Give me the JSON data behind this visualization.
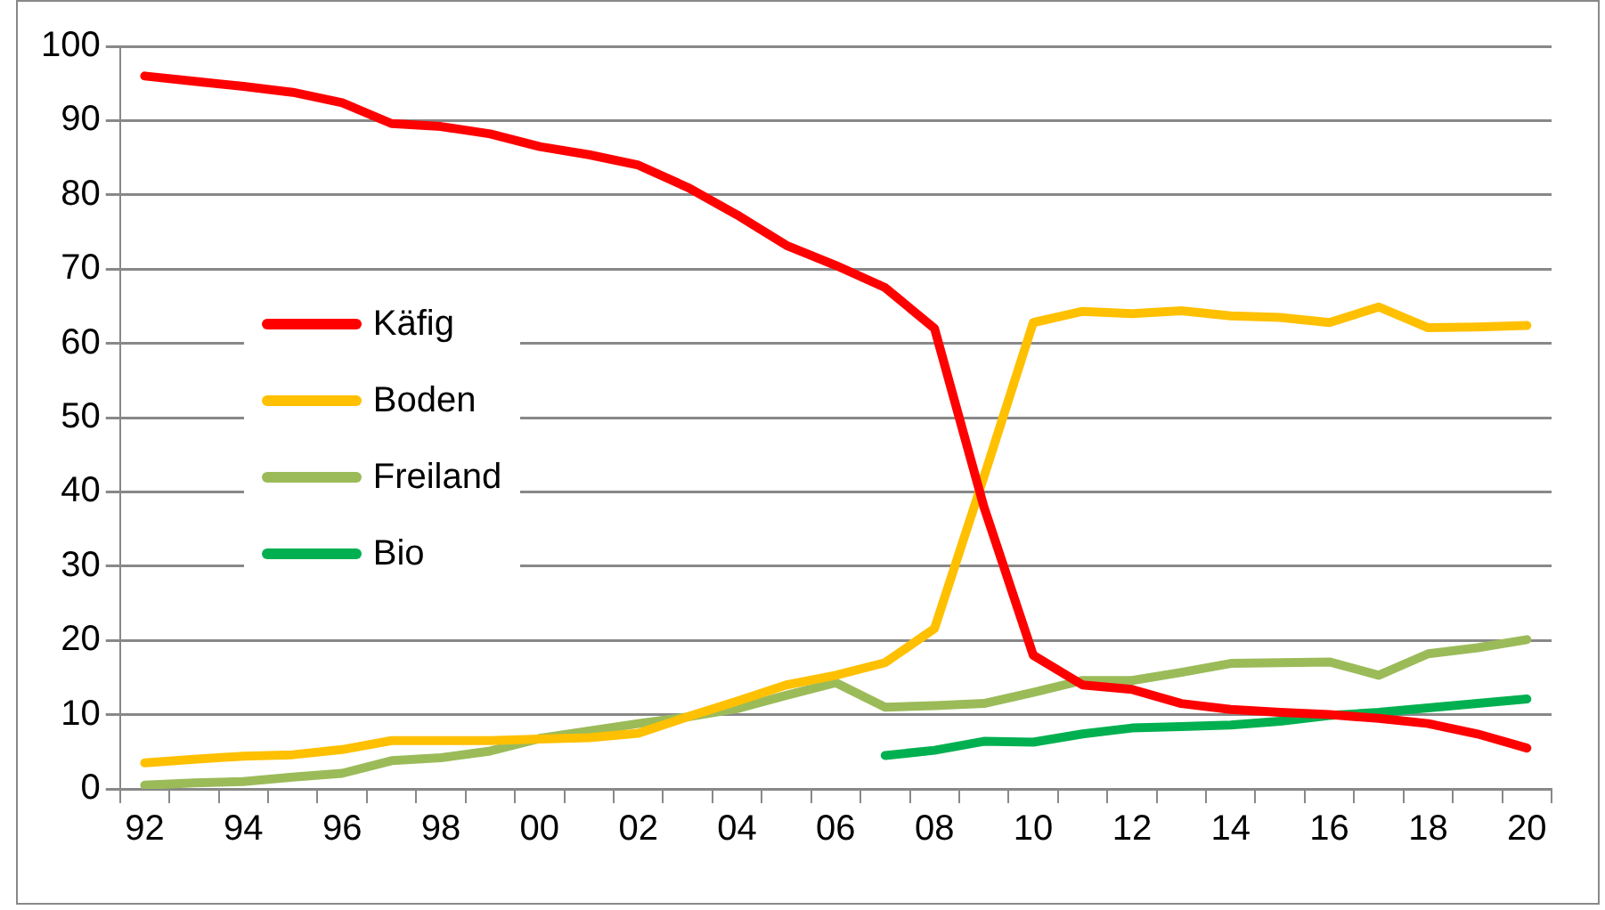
{
  "chart_data": {
    "type": "line",
    "categories": [
      "92",
      null,
      "94",
      null,
      "96",
      null,
      "98",
      null,
      "00",
      null,
      "02",
      null,
      "04",
      null,
      "06",
      null,
      "08",
      null,
      "10",
      null,
      "12",
      null,
      "14",
      null,
      "16",
      null,
      "18",
      null,
      "20"
    ],
    "series": [
      {
        "name": "Käfig",
        "color": "#ff0000",
        "values": [
          96,
          95.3,
          94.6,
          93.8,
          92.4,
          89.6,
          89.2,
          88.2,
          86.5,
          85.4,
          84,
          81,
          77.3,
          73.2,
          70.5,
          67.5,
          62,
          38,
          18,
          14,
          13.4,
          11.5,
          10.7,
          10.3,
          10,
          9.5,
          8.8,
          7.4,
          5.5
        ]
      },
      {
        "name": "Boden",
        "color": "#ffc000",
        "values": [
          3.5,
          4,
          4.4,
          4.6,
          5.3,
          6.5,
          6.5,
          6.5,
          6.7,
          6.9,
          7.5,
          9.7,
          11.8,
          14,
          15.3,
          17,
          21.6,
          42,
          62.8,
          64.3,
          64,
          64.4,
          63.7,
          63.5,
          62.8,
          64.9,
          62.1,
          62.2,
          62.4
        ]
      },
      {
        "name": "Freiland",
        "color": "#9bbb59",
        "values": [
          0.5,
          0.8,
          1,
          1.6,
          2.1,
          3.8,
          4.2,
          5.1,
          6.8,
          7.8,
          8.8,
          9.7,
          10.8,
          12.6,
          14.3,
          11,
          11.2,
          11.5,
          13,
          14.6,
          14.6,
          15.7,
          16.9,
          17,
          17.1,
          15.3,
          18.2,
          19,
          20.1
        ]
      },
      {
        "name": "Bio",
        "color": "#00b050",
        "values": [
          null,
          null,
          null,
          null,
          null,
          null,
          null,
          null,
          null,
          null,
          null,
          null,
          null,
          null,
          null,
          4.5,
          5.2,
          6.4,
          6.3,
          7.4,
          8.2,
          8.4,
          8.6,
          9.1,
          9.9,
          10.3,
          10.9,
          11.5,
          12.1
        ]
      }
    ],
    "ylim": [
      0,
      100
    ],
    "yticks": [
      0,
      10,
      20,
      30,
      40,
      50,
      60,
      70,
      80,
      90,
      100
    ],
    "grid": "y",
    "legend": "left",
    "marker": "none",
    "line_style": "solid"
  }
}
